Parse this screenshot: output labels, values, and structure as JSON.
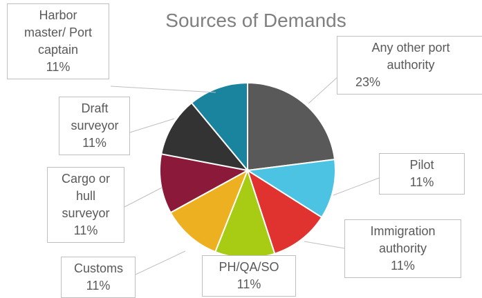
{
  "chart_data": {
    "type": "pie",
    "title": "Sources of Demands",
    "categories": [
      "Any other port authority",
      "Pilot",
      "Immigration authority",
      "PH/QA/SO",
      "Customs",
      "Cargo or hull surveyor",
      "Draft surveyor",
      "Harbor master/ Port captain"
    ],
    "values": [
      23,
      11,
      11,
      11,
      11,
      11,
      11,
      11
    ],
    "value_labels": [
      "23%",
      "11%",
      "11%",
      "11%",
      "11%",
      "11%",
      "11%",
      "11%"
    ],
    "colors": [
      "#595959",
      "#4dc3e3",
      "#e0332f",
      "#a8cc14",
      "#edb021",
      "#8b1a3a",
      "#333333",
      "#1a839d"
    ]
  }
}
